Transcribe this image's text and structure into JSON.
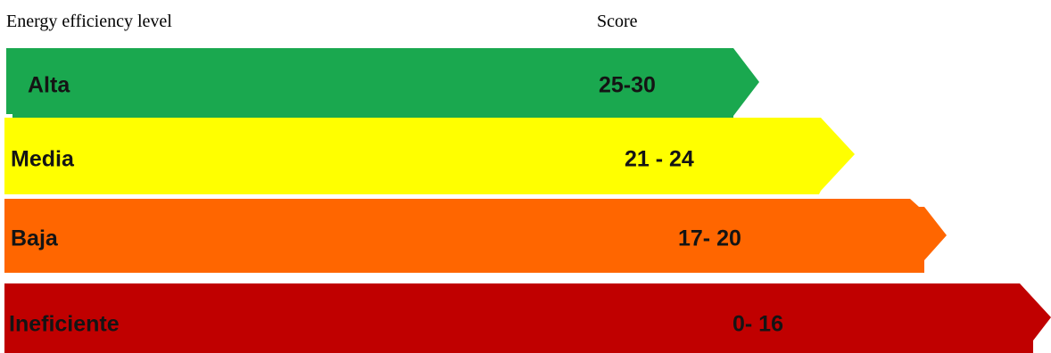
{
  "header": {
    "level_label": "Energy efficiency level",
    "score_label": "Score"
  },
  "bands": [
    {
      "level": "Alta",
      "score": "25-30",
      "color": "#1aa84f"
    },
    {
      "level": "Media",
      "score": "21 - 24",
      "color": "#ffff00"
    },
    {
      "level": "Baja",
      "score": "17- 20",
      "color": "#ff6600"
    },
    {
      "level": "Ineficiente",
      "score": "0- 16",
      "color": "#c00000"
    }
  ]
}
